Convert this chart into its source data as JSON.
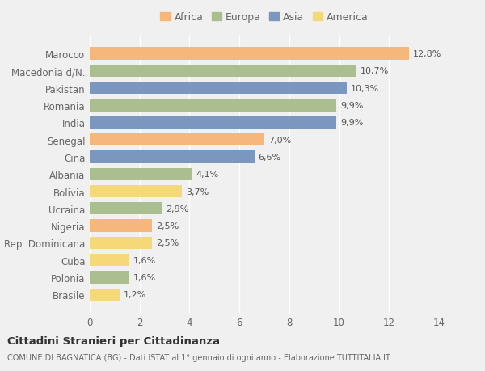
{
  "countries": [
    "Brasile",
    "Polonia",
    "Cuba",
    "Rep. Dominicana",
    "Nigeria",
    "Ucraina",
    "Bolivia",
    "Albania",
    "Cina",
    "Senegal",
    "India",
    "Romania",
    "Pakistan",
    "Macedonia d/N.",
    "Marocco"
  ],
  "values": [
    1.2,
    1.6,
    1.6,
    2.5,
    2.5,
    2.9,
    3.7,
    4.1,
    6.6,
    7.0,
    9.9,
    9.9,
    10.3,
    10.7,
    12.8
  ],
  "labels": [
    "1,2%",
    "1,6%",
    "1,6%",
    "2,5%",
    "2,5%",
    "2,9%",
    "3,7%",
    "4,1%",
    "6,6%",
    "7,0%",
    "9,9%",
    "9,9%",
    "10,3%",
    "10,7%",
    "12,8%"
  ],
  "continents": [
    "America",
    "Europa",
    "America",
    "America",
    "Africa",
    "Europa",
    "America",
    "Europa",
    "Asia",
    "Africa",
    "Asia",
    "Europa",
    "Asia",
    "Europa",
    "Africa"
  ],
  "colors": {
    "Africa": "#F5B87A",
    "Europa": "#ABBE8F",
    "Asia": "#7B97C0",
    "America": "#F5D878"
  },
  "legend_order": [
    "Africa",
    "Europa",
    "Asia",
    "America"
  ],
  "legend_colors": [
    "#F5B87A",
    "#ABBE8F",
    "#7B97C0",
    "#F5D878"
  ],
  "title": "Cittadini Stranieri per Cittadinanza",
  "subtitle": "COMUNE DI BAGNATICA (BG) - Dati ISTAT al 1° gennaio di ogni anno - Elaborazione TUTTITALIA.IT",
  "xlim": [
    0,
    14
  ],
  "xticks": [
    0,
    2,
    4,
    6,
    8,
    10,
    12,
    14
  ],
  "background_color": "#f0f0f0",
  "grid_color": "#ffffff",
  "text_color": "#666666",
  "label_color": "#555555"
}
